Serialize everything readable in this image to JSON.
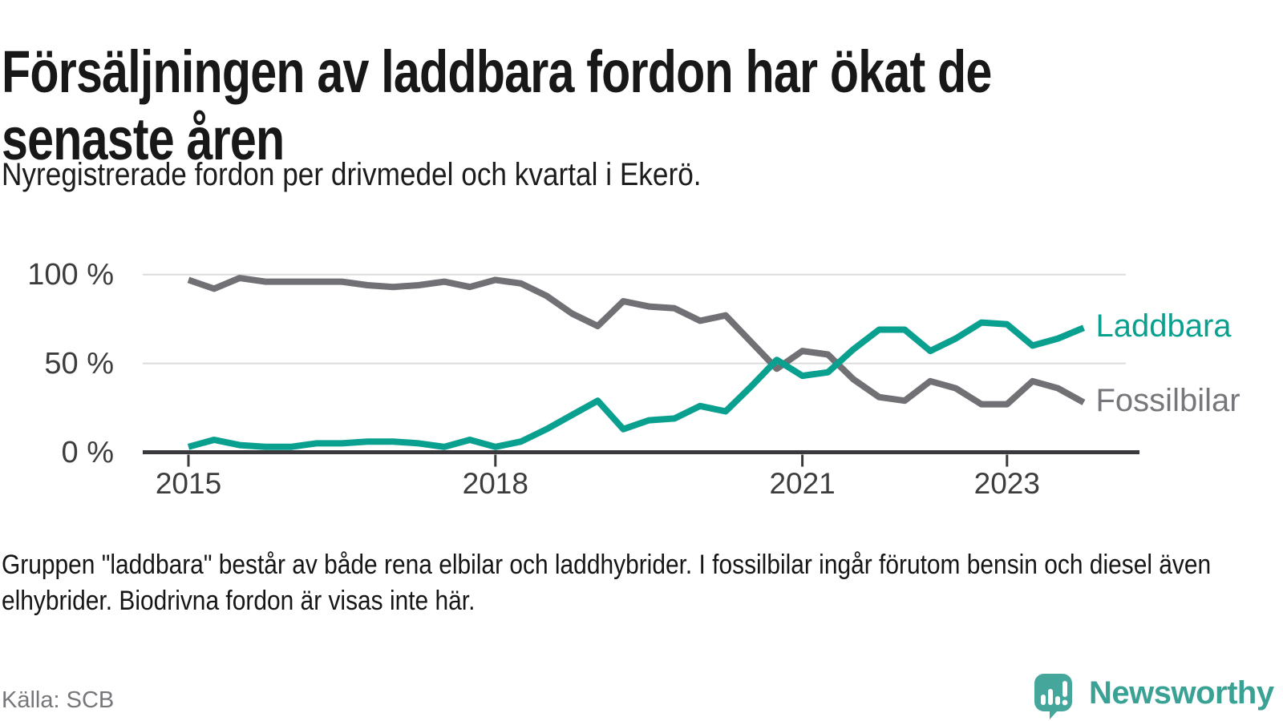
{
  "header": {
    "title": "Försäljningen av laddbara fordon har ökat de senaste åren",
    "subtitle": "Nyregistrerade fordon per drivmedel och kvartal i Ekerö."
  },
  "chart_data": {
    "type": "line",
    "title": "Försäljningen av laddbara fordon har ökat de senaste åren",
    "subtitle": "Nyregistrerade fordon per drivmedel och kvartal i Ekerö.",
    "unit": "%",
    "x": [
      "2015 K1",
      "2015 K2",
      "2015 K3",
      "2015 K4",
      "2016 K1",
      "2016 K2",
      "2016 K3",
      "2016 K4",
      "2017 K1",
      "2017 K2",
      "2017 K3",
      "2017 K4",
      "2018 K1",
      "2018 K2",
      "2018 K3",
      "2018 K4",
      "2019 K1",
      "2019 K2",
      "2019 K3",
      "2019 K4",
      "2020 K1",
      "2020 K2",
      "2020 K3",
      "2020 K4",
      "2021 K1",
      "2021 K2",
      "2021 K3",
      "2021 K4",
      "2022 K1",
      "2022 K2",
      "2022 K3",
      "2022 K4",
      "2023 K1",
      "2023 K2",
      "2023 K3",
      "2023 K4"
    ],
    "series": [
      {
        "name": "Fossilbilar",
        "color": "#717175",
        "label_color": "#77777b",
        "values": [
          97,
          92,
          98,
          96,
          96,
          96,
          96,
          94,
          93,
          94,
          96,
          93,
          97,
          95,
          88,
          78,
          71,
          85,
          82,
          81,
          74,
          77,
          62,
          47,
          57,
          55,
          41,
          31,
          29,
          40,
          36,
          27,
          27,
          40,
          36,
          28
        ]
      },
      {
        "name": "Laddbara",
        "color": "#0aa08f",
        "label_color": "#0aa08f",
        "values": [
          3,
          7,
          4,
          3,
          3,
          5,
          5,
          6,
          6,
          5,
          3,
          7,
          3,
          6,
          13,
          21,
          29,
          13,
          18,
          19,
          26,
          23,
          37,
          52,
          43,
          45,
          58,
          69,
          69,
          57,
          64,
          73,
          72,
          60,
          64,
          70
        ]
      }
    ],
    "ylim": [
      0,
      100
    ],
    "yticks": [
      {
        "value": 0,
        "label": "0 %"
      },
      {
        "value": 50,
        "label": "50 %"
      },
      {
        "value": 100,
        "label": "100 %"
      }
    ],
    "xticks": [
      {
        "index": 0,
        "label": "2015"
      },
      {
        "index": 12,
        "label": "2018"
      },
      {
        "index": 24,
        "label": "2021"
      },
      {
        "index": 32,
        "label": "2023"
      }
    ],
    "grid": "horizontal",
    "legend_position": "line-end-labels-right",
    "style": {
      "grid_color": "#dcdcdc",
      "axis_color": "#3a3a3e",
      "tick_label_color": "#3d3d3d",
      "line_width": 8
    }
  },
  "footnote": "Gruppen \"laddbara\" består av både rena elbilar och laddhybrider. I fossilbilar ingår förutom bensin och diesel även elhybrider. Biodrivna fordon är visas inte här.",
  "source": "Källa: SCB",
  "logo": {
    "wordmark": "Newsworthy",
    "icon": "newsworthy-bubble-barchart-icon",
    "icon_color": "#45a79c",
    "wordmark_color": "#3aa294"
  }
}
